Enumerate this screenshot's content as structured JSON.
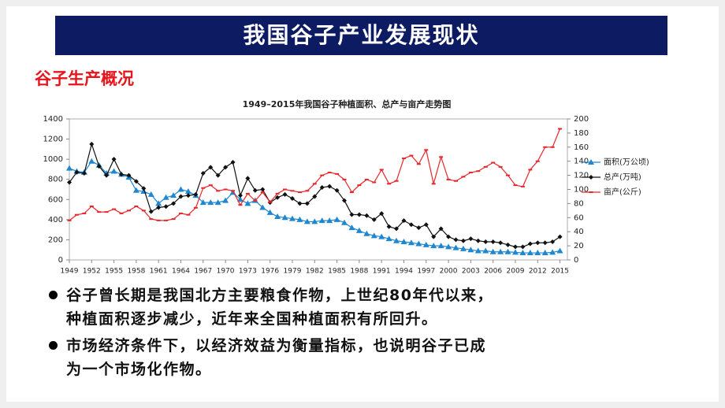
{
  "header": {
    "title": "我国谷子产业发展现状"
  },
  "subtitle": "谷子生产概况",
  "bullets": [
    [
      "谷子曾长期是我国北方主要粮食作物，上世纪80年代以来，",
      "种植面积逐步减少，近年来全国种植面积有所回升。"
    ],
    [
      "市场经济条件下，以经济效益为衡量指标，也说明谷子已成",
      "为一个市场化作物。"
    ]
  ],
  "chart_data": {
    "type": "line",
    "title": "1949–2015年我国谷子种植面积、总产与亩产走势图",
    "x": [
      1949,
      1950,
      1951,
      1952,
      1953,
      1954,
      1955,
      1956,
      1957,
      1958,
      1959,
      1960,
      1961,
      1962,
      1963,
      1964,
      1965,
      1966,
      1967,
      1968,
      1969,
      1970,
      1971,
      1972,
      1973,
      1974,
      1975,
      1976,
      1977,
      1978,
      1979,
      1980,
      1981,
      1982,
      1983,
      1984,
      1985,
      1986,
      1987,
      1988,
      1989,
      1990,
      1991,
      1992,
      1993,
      1994,
      1995,
      1996,
      1997,
      1998,
      1999,
      2000,
      2001,
      2002,
      2003,
      2004,
      2005,
      2006,
      2007,
      2008,
      2009,
      2010,
      2011,
      2012,
      2013,
      2014,
      2015
    ],
    "xlim": [
      1949,
      2016
    ],
    "xticks": [
      1949,
      1952,
      1955,
      1958,
      1961,
      1964,
      1967,
      1970,
      1973,
      1976,
      1979,
      1982,
      1985,
      1988,
      1991,
      1994,
      1997,
      2000,
      2003,
      2006,
      2009,
      2012,
      2015
    ],
    "ylim": [
      0,
      1400
    ],
    "yticks": [
      0,
      200,
      400,
      600,
      800,
      1000,
      1200,
      1400
    ],
    "y2lim": [
      0,
      200
    ],
    "y2ticks": [
      0,
      20,
      40,
      60,
      80,
      100,
      120,
      140,
      160,
      180,
      200
    ],
    "series": [
      {
        "name": "面积(万公顷)",
        "color": "#1f86d0",
        "marker": "triangle",
        "values": [
          910,
          880,
          870,
          980,
          940,
          860,
          880,
          850,
          820,
          690,
          680,
          650,
          560,
          620,
          640,
          700,
          680,
          640,
          570,
          570,
          570,
          590,
          670,
          600,
          560,
          590,
          520,
          470,
          430,
          420,
          410,
          400,
          380,
          380,
          390,
          390,
          400,
          370,
          320,
          290,
          260,
          240,
          230,
          210,
          190,
          180,
          170,
          160,
          150,
          140,
          140,
          130,
          120,
          110,
          100,
          90,
          90,
          80,
          80,
          80,
          75,
          70,
          70,
          70,
          70,
          75,
          90
        ]
      },
      {
        "name": "总产(万吨)",
        "color": "#111111",
        "marker": "diamond",
        "values": [
          770,
          870,
          860,
          1150,
          930,
          840,
          1000,
          850,
          840,
          780,
          710,
          480,
          520,
          530,
          560,
          630,
          640,
          650,
          860,
          920,
          840,
          920,
          970,
          640,
          810,
          690,
          700,
          570,
          620,
          650,
          610,
          560,
          560,
          630,
          720,
          730,
          690,
          590,
          450,
          450,
          440,
          400,
          460,
          330,
          310,
          390,
          350,
          320,
          350,
          230,
          310,
          230,
          200,
          190,
          210,
          190,
          180,
          180,
          170,
          150,
          130,
          130,
          160,
          170,
          170,
          180,
          230
        ]
      },
      {
        "name": "亩产(公斤)",
        "color": "#e8262a",
        "marker": "dash",
        "axis": "y2",
        "values": [
          56,
          64,
          66,
          76,
          68,
          68,
          72,
          66,
          70,
          76,
          70,
          58,
          56,
          56,
          58,
          66,
          64,
          74,
          102,
          106,
          98,
          100,
          98,
          78,
          94,
          84,
          96,
          82,
          94,
          100,
          98,
          96,
          98,
          108,
          120,
          124,
          122,
          114,
          96,
          106,
          114,
          110,
          128,
          108,
          112,
          144,
          148,
          136,
          156,
          108,
          146,
          114,
          112,
          118,
          124,
          126,
          132,
          138,
          132,
          120,
          106,
          104,
          128,
          140,
          160,
          160,
          186
        ]
      }
    ]
  }
}
